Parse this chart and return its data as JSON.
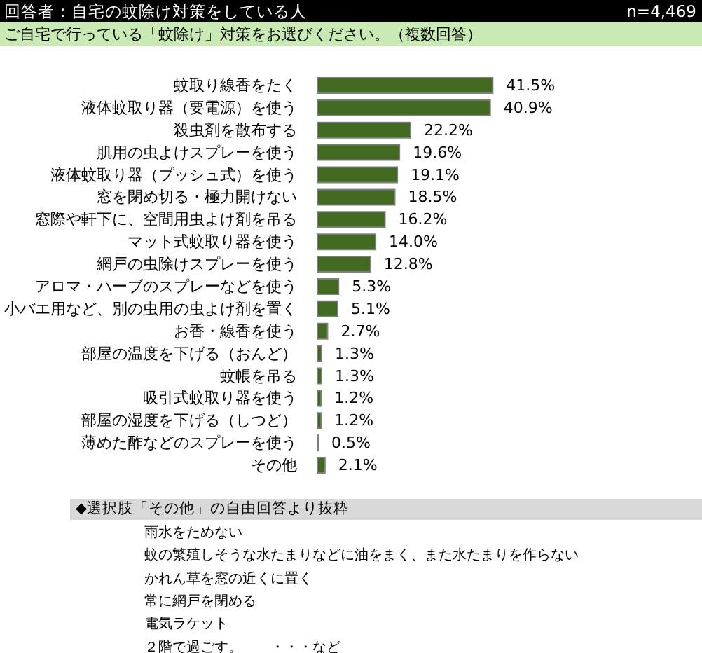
{
  "chart_data": {
    "type": "bar",
    "orientation": "horizontal",
    "title": "回答者：自宅の蚊除け対策をしている人",
    "subtitle": "ご自宅で行っている「蚊除け」対策をお選びください。（複数回答）",
    "categories": [
      "蚊取り線香をたく",
      "液体蚊取り器（要電源）を使う",
      "殺虫剤を散布する",
      "肌用の虫よけスプレーを使う",
      "液体蚊取り器（プッシュ式）を使う",
      "窓を閉め切る・極力開けない",
      "窓際や軒下に、空間用虫よけ剤を吊る",
      "マット式蚊取り器を使う",
      "網戸の虫除けスプレーを使う",
      "アロマ・ハーブのスプレーなどを使う",
      "小バエ用など、別の虫用の虫よけ剤を置く",
      "お香・線香を使う",
      "部屋の温度を下げる（おんど）",
      "蚊帳を吊る",
      "吸引式蚊取り器を使う",
      "部屋の湿度を下げる（しつど）",
      "薄めた酢などのスプレーを使う",
      "その他"
    ],
    "values": [
      41.5,
      40.9,
      22.2,
      19.6,
      19.1,
      18.5,
      16.2,
      14.0,
      12.8,
      5.3,
      5.1,
      2.7,
      1.3,
      1.3,
      1.2,
      1.2,
      0.5,
      2.1
    ],
    "value_labels": [
      "41.5%",
      "40.9%",
      "22.2%",
      "19.6%",
      "19.1%",
      "18.5%",
      "16.2%",
      "14.0%",
      "12.8%",
      "5.3%",
      "5.1%",
      "2.7%",
      "1.3%",
      "1.3%",
      "1.2%",
      "1.2%",
      "0.5%",
      "2.1%"
    ],
    "color": "#41691f",
    "tick_labels": "y",
    "annotations": [
      "n=4,469",
      "◆選択肢「その他」の自由回答より抜粋",
      "雨水をためない",
      "蚊の繁殖しそうな水たまりなどに油をまく、また水たまりを作らない",
      "かれん草を窓の近くに置く",
      "常に網戸を閉める",
      "電気ラケット",
      "２階で過ごす。　　・・・など"
    ]
  }
}
